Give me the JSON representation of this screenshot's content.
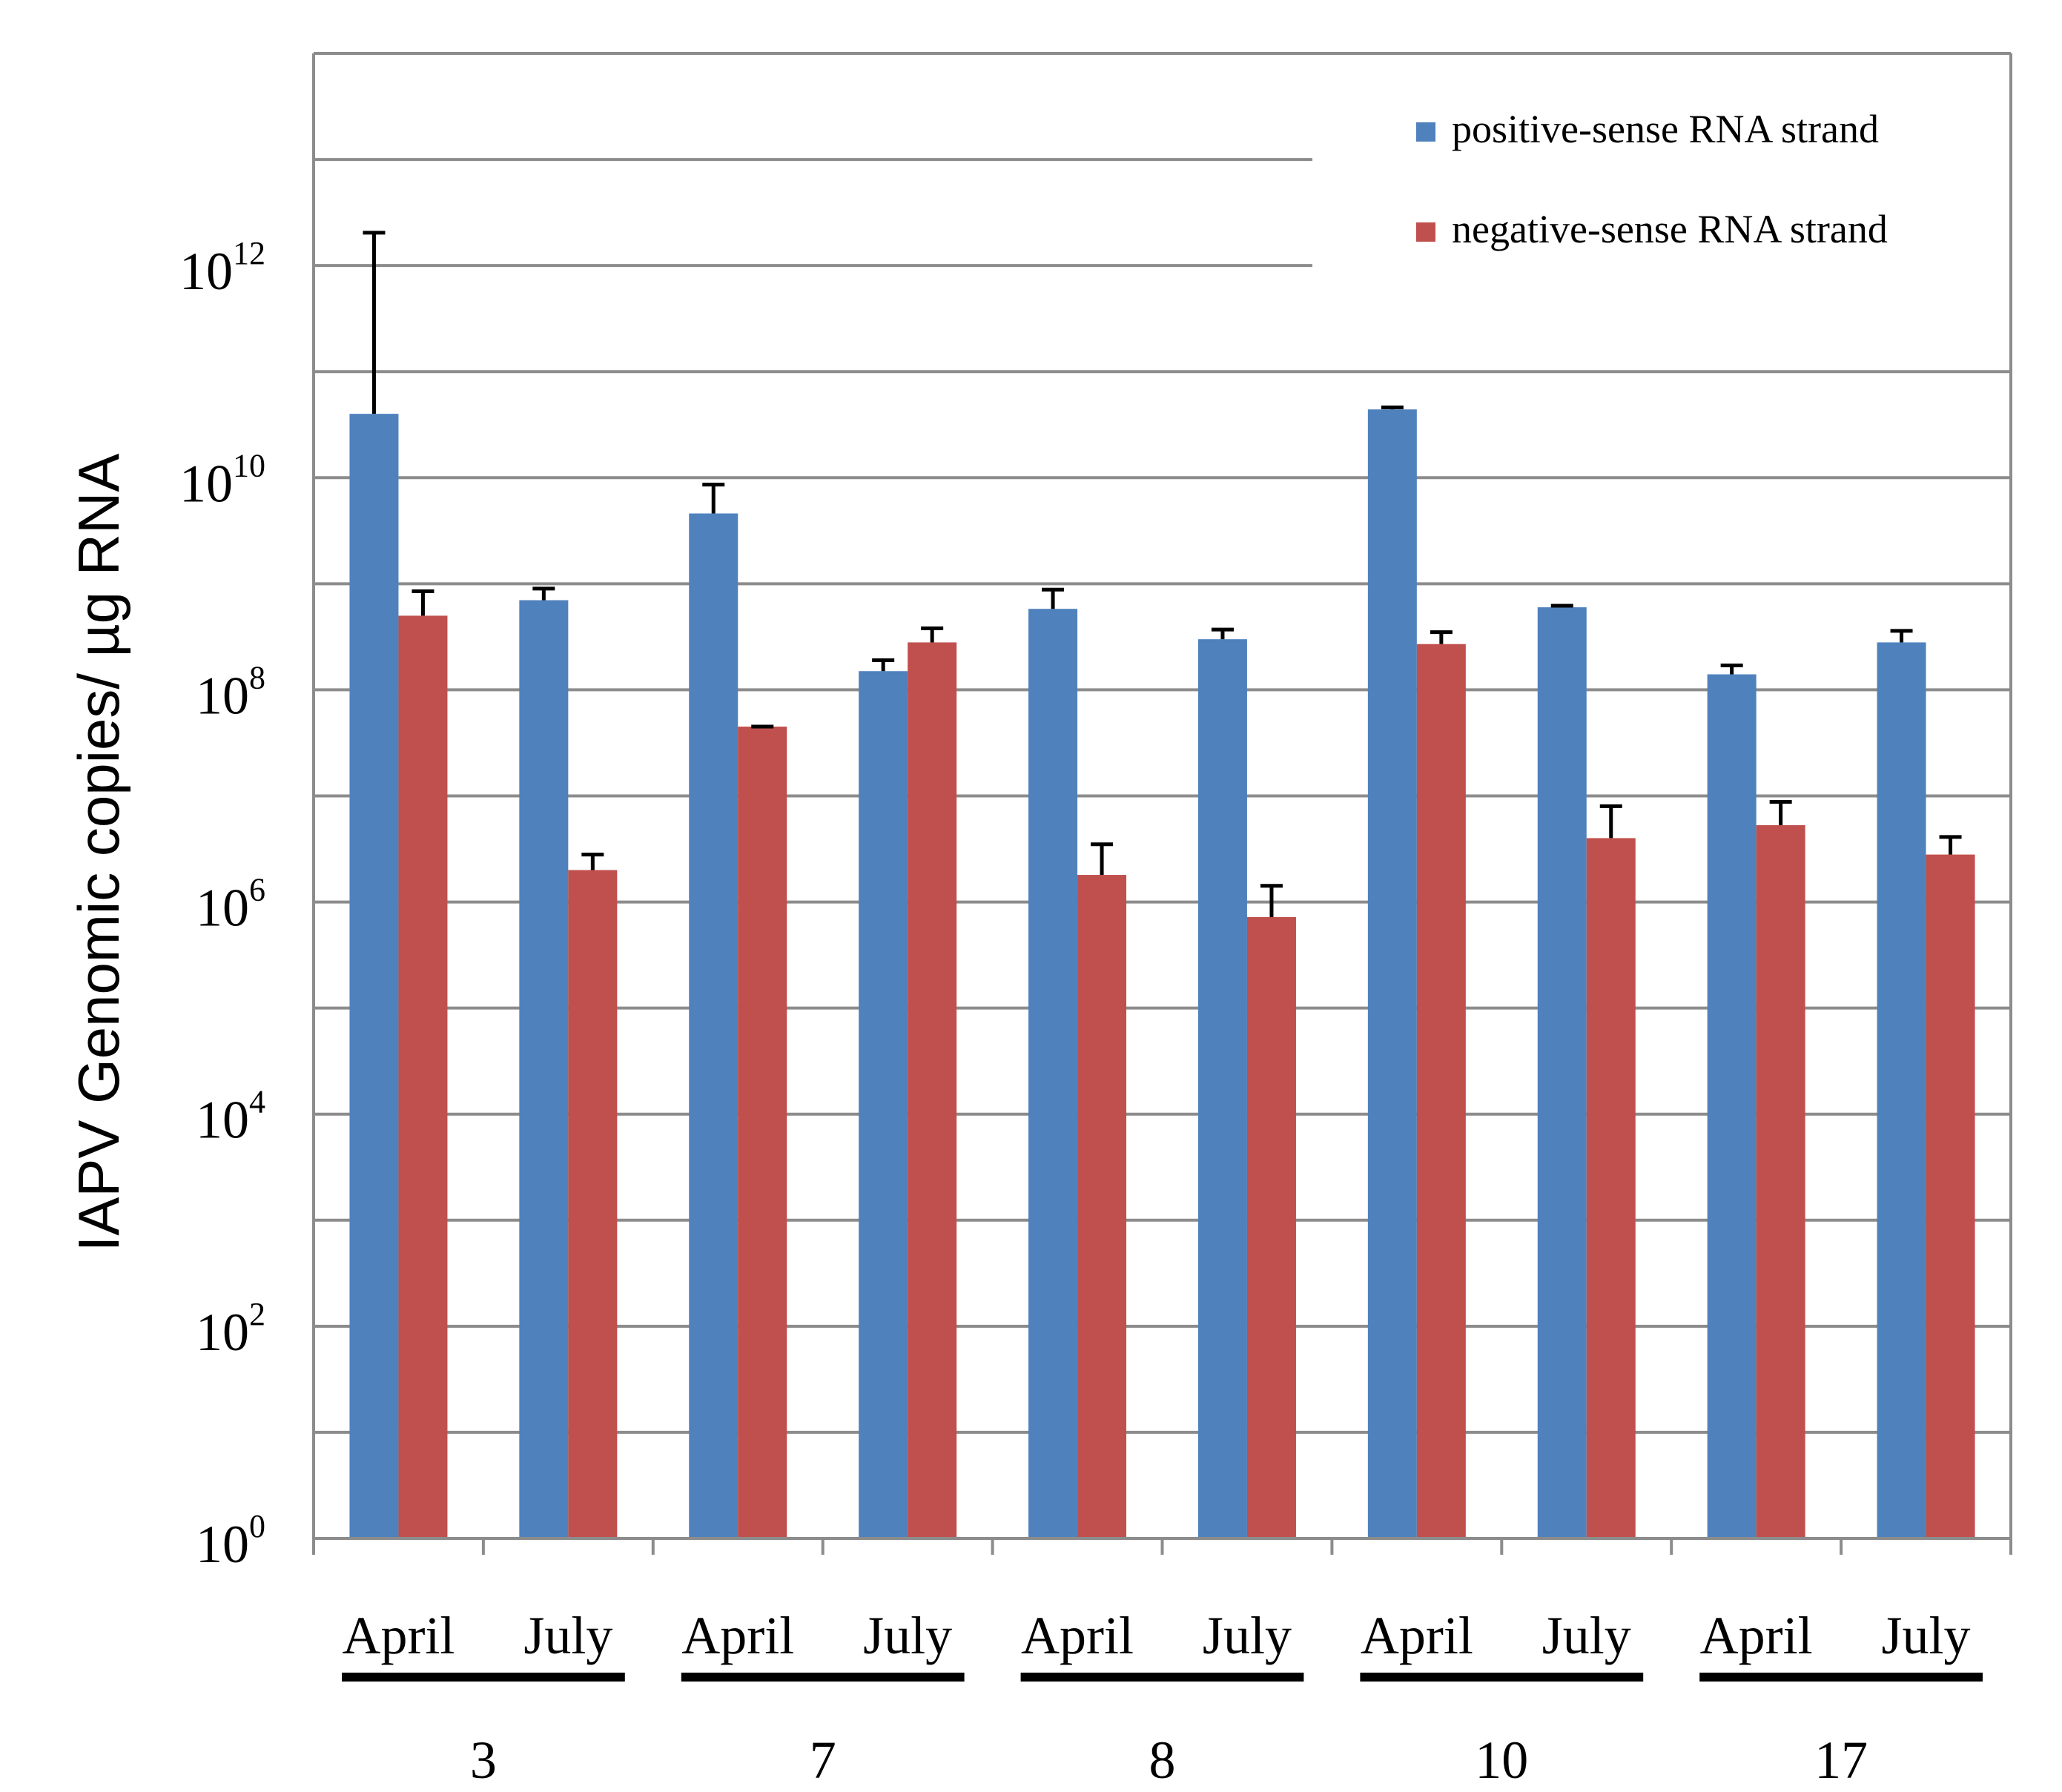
{
  "chart_data": {
    "type": "bar",
    "ylabel": "IAPV  Genomic copies/ µg RNA",
    "yscale": "log",
    "ylim": [
      1,
      100000000000000
    ],
    "y_tick_labels": [
      {
        "base": "10",
        "exp": "0",
        "value": 1
      },
      {
        "base": "10",
        "exp": "2",
        "value": 100
      },
      {
        "base": "10",
        "exp": "4",
        "value": 10000
      },
      {
        "base": "10",
        "exp": "6",
        "value": 1000000
      },
      {
        "base": "10",
        "exp": "8",
        "value": 100000000
      },
      {
        "base": "10",
        "exp": "10",
        "value": 10000000000
      },
      {
        "base": "10",
        "exp": "12",
        "value": 1000000000000
      }
    ],
    "grid": true,
    "legend_position": "top-right",
    "categories": [
      "April",
      "July",
      "April",
      "July",
      "April",
      "July",
      "April",
      "July",
      "April",
      "July"
    ],
    "groups": [
      {
        "label": "3",
        "categories": [
          0,
          1
        ]
      },
      {
        "label": "7",
        "categories": [
          2,
          3
        ]
      },
      {
        "label": "8",
        "categories": [
          4,
          5
        ]
      },
      {
        "label": "10",
        "categories": [
          6,
          7
        ]
      },
      {
        "label": "17",
        "categories": [
          8,
          9
        ]
      }
    ],
    "series": [
      {
        "name": "positive-sense RNA strand",
        "color": "#4f81bd",
        "values": [
          40000000000,
          700000000,
          4600000000,
          150000000,
          580000000,
          300000000,
          44000000000,
          600000000,
          140000000,
          280000000
        ],
        "error_plus": [
          2000000000000,
          200000000,
          4000000000,
          40000000,
          300000000,
          70000000,
          2000000000,
          20000000,
          30000000,
          80000000
        ],
        "error_minus": [
          0,
          0,
          0,
          0,
          0,
          0,
          0,
          0,
          0,
          0
        ]
      },
      {
        "name": "negative-sense RNA strand",
        "color": "#c0504d",
        "values": [
          500000000,
          2000000,
          45000000,
          280000000,
          1800000,
          720000,
          270000000,
          4000000,
          5300000,
          2800000
        ],
        "error_plus": [
          350000000,
          800000,
          0,
          100000000,
          1700000,
          700000,
          80000000,
          4000000,
          3500000,
          1300000
        ],
        "error_minus": [
          0,
          0,
          0,
          0,
          0,
          0,
          0,
          0,
          0,
          0
        ]
      }
    ]
  }
}
